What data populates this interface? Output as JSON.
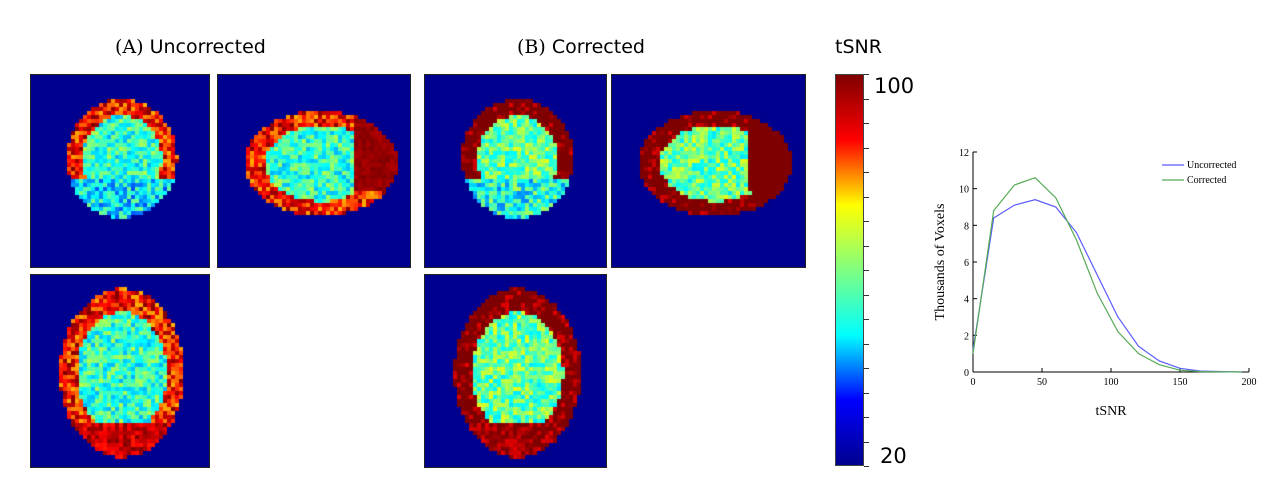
{
  "panels": {
    "a_label": "(A)",
    "a_title": "Uncorrected",
    "b_label": "(B)",
    "b_title": "Corrected"
  },
  "colorbar": {
    "title": "tSNR",
    "max_label": "100",
    "min_label": "20",
    "min": 20,
    "max": 100,
    "colormap": "jet"
  },
  "chart_data": {
    "type": "line",
    "xlabel": "tSNR",
    "ylabel": "Thousands of Voxels",
    "xlim": [
      0,
      200
    ],
    "ylim": [
      0,
      12
    ],
    "xticks": [
      0,
      50,
      100,
      150,
      200
    ],
    "yticks": [
      0,
      2,
      4,
      6,
      8,
      10,
      12
    ],
    "legend_position": "top-right",
    "grid": false,
    "x": [
      0,
      15,
      30,
      45,
      60,
      75,
      90,
      105,
      120,
      135,
      150,
      165,
      180,
      195
    ],
    "series": [
      {
        "name": "Uncorrected",
        "color": "#5a5aff",
        "values": [
          1.2,
          8.4,
          9.1,
          9.4,
          9.0,
          7.6,
          5.3,
          3.0,
          1.4,
          0.6,
          0.2,
          0.05,
          0.02,
          0
        ]
      },
      {
        "name": "Corrected",
        "color": "#55aa55",
        "values": [
          1.0,
          8.8,
          10.2,
          10.6,
          9.5,
          7.2,
          4.3,
          2.2,
          1.0,
          0.4,
          0.1,
          0.02,
          0.01,
          0
        ]
      }
    ]
  }
}
